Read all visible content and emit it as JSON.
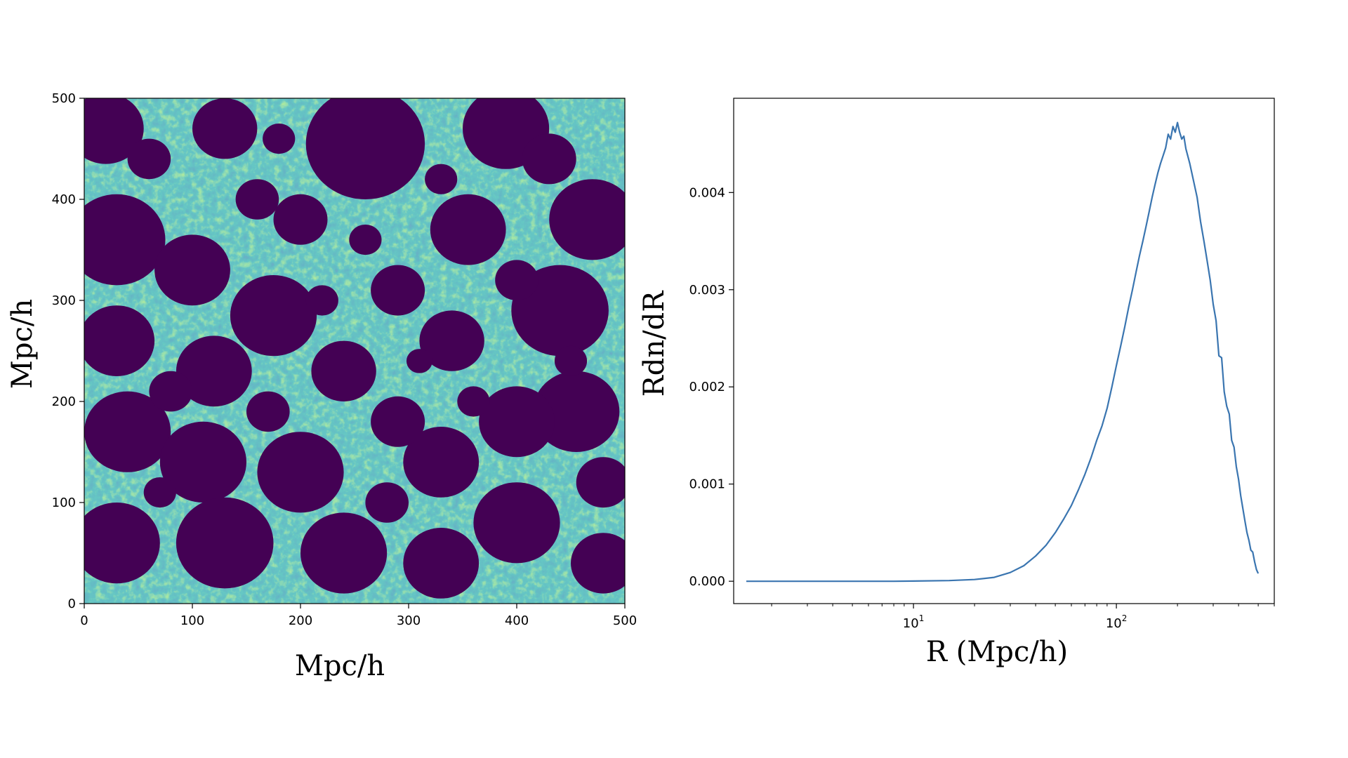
{
  "chart_data": [
    {
      "type": "heatmap",
      "xlabel": "Mpc/h",
      "ylabel": "Mpc/h",
      "xlim": [
        0,
        500
      ],
      "ylim": [
        0,
        500
      ],
      "x_ticks": [
        "0",
        "100",
        "200",
        "300",
        "400",
        "500"
      ],
      "y_ticks": [
        "0",
        "100",
        "200",
        "300",
        "400",
        "500"
      ],
      "colormap": "viridis",
      "colors": {
        "ionized": "#440154",
        "low": "#3b528b",
        "mid": "#21918c",
        "high": "#5ec962",
        "peak": "#b5de2b"
      },
      "ionized_regions": [
        {
          "x": 20,
          "y": 470,
          "r": 35
        },
        {
          "x": 130,
          "y": 470,
          "r": 30
        },
        {
          "x": 260,
          "y": 455,
          "r": 55
        },
        {
          "x": 390,
          "y": 470,
          "r": 40
        },
        {
          "x": 470,
          "y": 380,
          "r": 40
        },
        {
          "x": 30,
          "y": 360,
          "r": 45
        },
        {
          "x": 100,
          "y": 330,
          "r": 35
        },
        {
          "x": 175,
          "y": 285,
          "r": 40
        },
        {
          "x": 290,
          "y": 310,
          "r": 25
        },
        {
          "x": 355,
          "y": 370,
          "r": 35
        },
        {
          "x": 440,
          "y": 290,
          "r": 45
        },
        {
          "x": 30,
          "y": 260,
          "r": 35
        },
        {
          "x": 120,
          "y": 230,
          "r": 35
        },
        {
          "x": 240,
          "y": 230,
          "r": 30
        },
        {
          "x": 340,
          "y": 260,
          "r": 30
        },
        {
          "x": 455,
          "y": 190,
          "r": 40
        },
        {
          "x": 40,
          "y": 170,
          "r": 40
        },
        {
          "x": 110,
          "y": 140,
          "r": 40
        },
        {
          "x": 200,
          "y": 130,
          "r": 40
        },
        {
          "x": 330,
          "y": 140,
          "r": 35
        },
        {
          "x": 400,
          "y": 180,
          "r": 35
        },
        {
          "x": 30,
          "y": 60,
          "r": 40
        },
        {
          "x": 130,
          "y": 60,
          "r": 45
        },
        {
          "x": 240,
          "y": 50,
          "r": 40
        },
        {
          "x": 330,
          "y": 40,
          "r": 35
        },
        {
          "x": 400,
          "y": 80,
          "r": 40
        },
        {
          "x": 480,
          "y": 40,
          "r": 30
        },
        {
          "x": 200,
          "y": 380,
          "r": 25
        },
        {
          "x": 60,
          "y": 440,
          "r": 20
        },
        {
          "x": 160,
          "y": 400,
          "r": 20
        },
        {
          "x": 430,
          "y": 440,
          "r": 25
        },
        {
          "x": 80,
          "y": 210,
          "r": 20
        },
        {
          "x": 290,
          "y": 180,
          "r": 25
        },
        {
          "x": 170,
          "y": 190,
          "r": 20
        },
        {
          "x": 360,
          "y": 200,
          "r": 15
        },
        {
          "x": 480,
          "y": 120,
          "r": 25
        },
        {
          "x": 280,
          "y": 100,
          "r": 20
        },
        {
          "x": 70,
          "y": 110,
          "r": 15
        },
        {
          "x": 260,
          "y": 360,
          "r": 15
        },
        {
          "x": 220,
          "y": 300,
          "r": 15
        },
        {
          "x": 400,
          "y": 320,
          "r": 20
        },
        {
          "x": 330,
          "y": 420,
          "r": 15
        },
        {
          "x": 180,
          "y": 460,
          "r": 15
        },
        {
          "x": 450,
          "y": 240,
          "r": 15
        },
        {
          "x": 310,
          "y": 240,
          "r": 12
        }
      ]
    },
    {
      "type": "line",
      "xlabel": "R (Mpc/h)",
      "ylabel": "Rdn/dR",
      "xscale": "log",
      "xlim": [
        1.3,
        600
      ],
      "ylim": [
        -0.00023,
        0.00497
      ],
      "x_ticks": [
        {
          "value": 10,
          "base": "10",
          "exp": "1"
        },
        {
          "value": 100,
          "base": "10",
          "exp": "2"
        }
      ],
      "y_ticks": [
        "0.000",
        "0.001",
        "0.002",
        "0.003",
        "0.004"
      ],
      "y_tick_values": [
        0,
        0.001,
        0.002,
        0.003,
        0.004
      ],
      "line_color": "#3a75b0",
      "series": [
        {
          "x": [
            1.5,
            2,
            3,
            5,
            8,
            10,
            15,
            20,
            25,
            30,
            35,
            40,
            45,
            50,
            55,
            60,
            65,
            70,
            75,
            80,
            85,
            90,
            95,
            100,
            105,
            110,
            115,
            120,
            125,
            130,
            135,
            140,
            145,
            150,
            155,
            160,
            165,
            170,
            175,
            180,
            185,
            190,
            195,
            200,
            205,
            210,
            215,
            220,
            230,
            240,
            250,
            260,
            270,
            280,
            290,
            300,
            310,
            320,
            330,
            340,
            350,
            360,
            370,
            380,
            390,
            400,
            410,
            420,
            430,
            440,
            450,
            460,
            470,
            480,
            490,
            500
          ],
          "y": [
            0,
            0,
            0,
            0,
            0,
            2e-06,
            7e-06,
            1.8e-05,
            4e-05,
            9e-05,
            0.00016,
            0.00026,
            0.00037,
            0.0005,
            0.00064,
            0.00078,
            0.00094,
            0.0011,
            0.00127,
            0.00145,
            0.0016,
            0.00178,
            0.002,
            0.00222,
            0.00242,
            0.00262,
            0.00282,
            0.003,
            0.00318,
            0.00335,
            0.0035,
            0.00365,
            0.0038,
            0.00395,
            0.00408,
            0.0042,
            0.0043,
            0.00438,
            0.00446,
            0.0046,
            0.00455,
            0.00468,
            0.00462,
            0.00472,
            0.00462,
            0.00455,
            0.00458,
            0.00445,
            0.0043,
            0.00412,
            0.00395,
            0.0037,
            0.0035,
            0.0033,
            0.0031,
            0.00285,
            0.00268,
            0.00232,
            0.0023,
            0.00195,
            0.0018,
            0.00172,
            0.00145,
            0.00138,
            0.00118,
            0.00105,
            0.00088,
            0.00075,
            0.00062,
            0.0005,
            0.00042,
            0.00032,
            0.0003,
            0.0002,
            0.00012,
            8e-05
          ]
        }
      ]
    }
  ]
}
